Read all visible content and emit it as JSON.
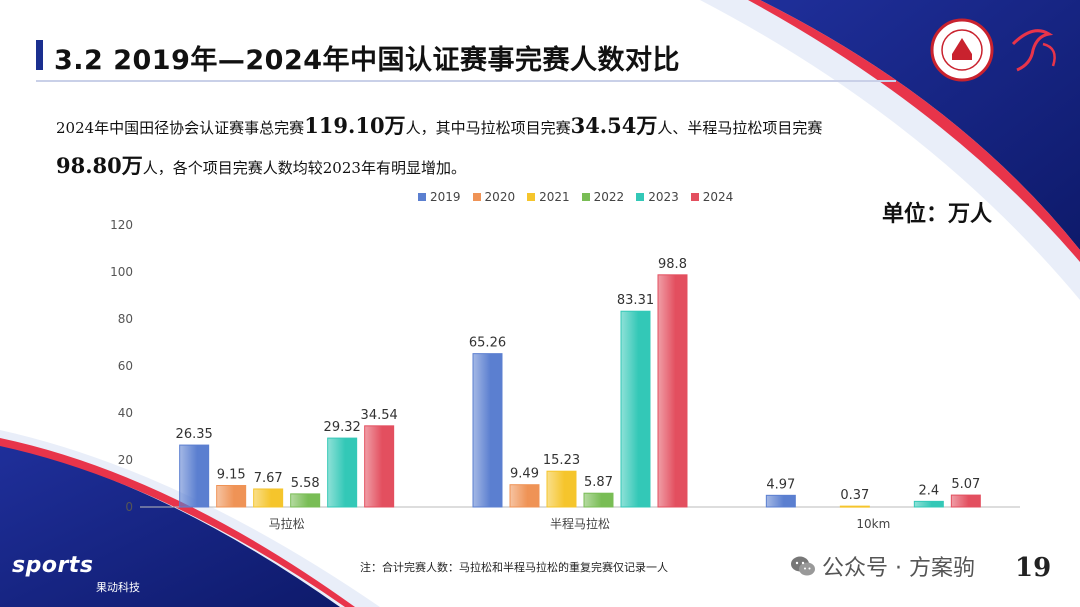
{
  "title": "3.2 2019年—2024年中国认证赛事完赛人数对比",
  "summary": {
    "line1_a": "2024年中国田径协会认证赛事总完赛",
    "line1_v1": "119.10万",
    "line1_b": "人，其中马拉松项目完赛",
    "line1_v2": "34.54万",
    "line1_c": "人、半程马拉松项目完赛",
    "line2_v3": "98.80万",
    "line2_a": "人，各个项目完赛人数均较2023年有明显增加。"
  },
  "unit_label": "单位：万人",
  "footnote": "注：合计完赛人数：马拉松和半程马拉松的重复完赛仅记录一人",
  "page_number": "19",
  "brand": {
    "sports": "sports",
    "sub": "果动科技"
  },
  "wechat": {
    "text": "公众号 · 方案驹",
    "icon": "wechat-icon"
  },
  "colors": {
    "accent": "#1a2f8f",
    "bar_2019": "#5b7fd0",
    "bar_2020": "#ef9356",
    "bar_2021": "#f5c52c",
    "bar_2022": "#79bd55",
    "bar_2023": "#33c8b7",
    "bar_2024": "#e34f5f"
  },
  "chart_data": {
    "type": "bar",
    "categories": [
      "马拉松",
      "半程马拉松",
      "10km"
    ],
    "series": [
      {
        "name": "2019",
        "values": [
          26.35,
          65.26,
          4.97
        ]
      },
      {
        "name": "2020",
        "values": [
          9.15,
          9.49,
          null
        ]
      },
      {
        "name": "2021",
        "values": [
          7.67,
          15.23,
          0.37
        ]
      },
      {
        "name": "2022",
        "values": [
          5.58,
          5.87,
          null
        ]
      },
      {
        "name": "2023",
        "values": [
          29.32,
          83.31,
          2.4
        ]
      },
      {
        "name": "2024",
        "values": [
          34.54,
          98.8,
          5.07
        ]
      }
    ],
    "y_ticks": [
      "0",
      "20",
      "40",
      "60",
      "80",
      "100",
      "120"
    ],
    "ylim": [
      0,
      120
    ],
    "legend_position": "top",
    "grid": false
  }
}
